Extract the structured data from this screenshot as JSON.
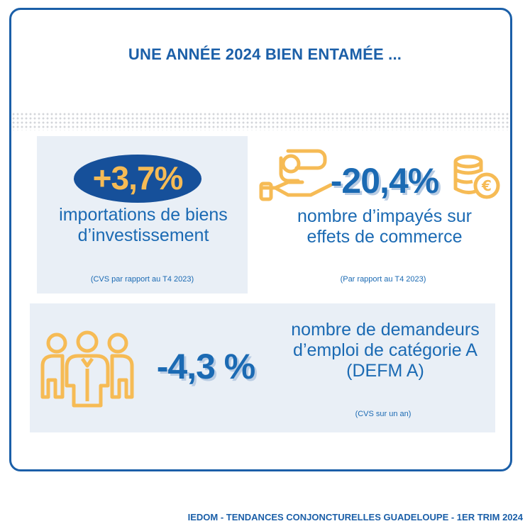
{
  "title": "UNE ANNÉE 2024 BIEN ENTAMÉE ...",
  "stats": [
    {
      "value": "+3,7%",
      "label": "importations de biens d’investissement",
      "note": "(CVS par rapport au T4 2023)"
    },
    {
      "value": "-20,4%",
      "label": "nombre d’impayés sur effets de commerce",
      "note": "(Par rapport au T4 2023)"
    },
    {
      "value": "-4,3 %",
      "label": "nombre de demandeurs d’emploi de catégorie A (DEFM A)",
      "note": "(CVS sur un an)"
    }
  ],
  "icons": [
    "hand-coin-icon",
    "coin-stack-euro-icon",
    "people-group-icon"
  ],
  "colors": {
    "primary": "#1b5fa8",
    "accent": "#f6bb55",
    "panel": "#e9eff6"
  },
  "footer": "IEDOM - TENDANCES CONJONCTURELLES GUADELOUPE - 1ER TRIM 2024"
}
